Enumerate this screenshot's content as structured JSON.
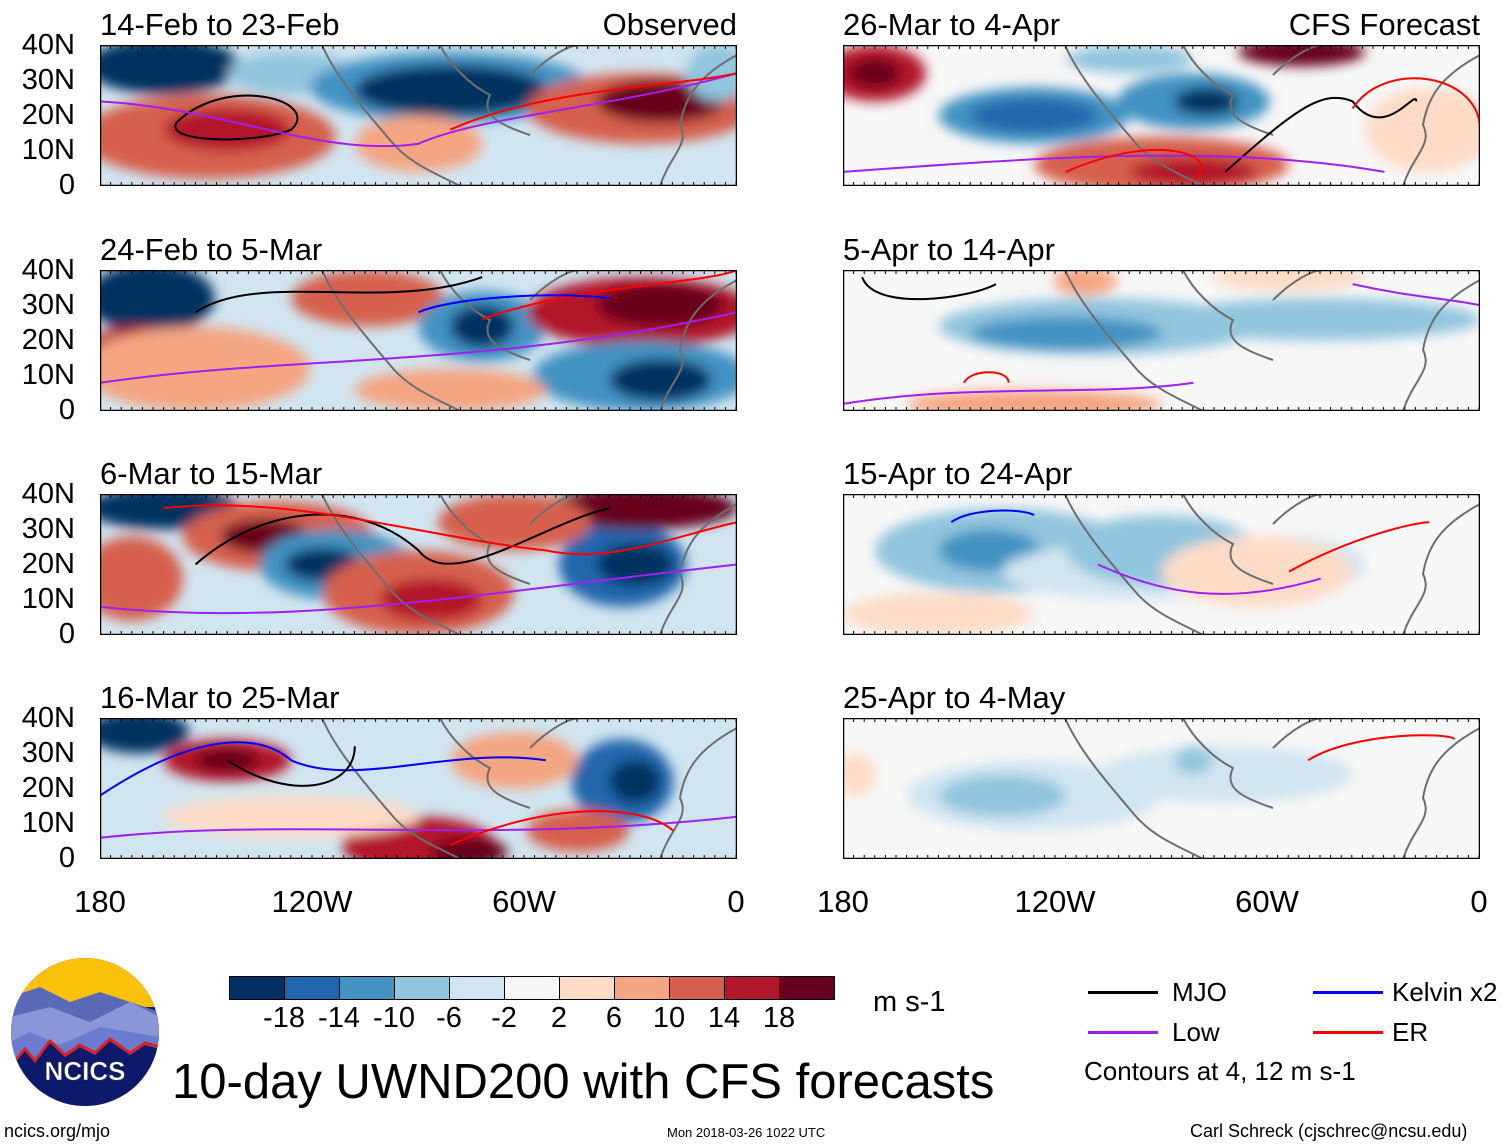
{
  "columns": {
    "left_label": "Observed",
    "right_label": "CFS Forecast"
  },
  "panels": [
    {
      "title": "14-Feb to 23-Feb",
      "kind": "Observed"
    },
    {
      "title": "24-Feb to 5-Mar",
      "kind": "Observed"
    },
    {
      "title": "6-Mar to 15-Mar",
      "kind": "Observed"
    },
    {
      "title": "16-Mar to 25-Mar",
      "kind": "Observed"
    },
    {
      "title": "26-Mar to 4-Apr",
      "kind": "CFS Forecast"
    },
    {
      "title": "5-Apr to 14-Apr",
      "kind": "CFS Forecast"
    },
    {
      "title": "15-Apr to 24-Apr",
      "kind": "CFS Forecast"
    },
    {
      "title": "25-Apr to 4-May",
      "kind": "CFS Forecast"
    }
  ],
  "y_ticks": [
    "40N",
    "30N",
    "20N",
    "10N",
    "0"
  ],
  "x_ticks": [
    "180",
    "120W",
    "60W",
    "0"
  ],
  "colorbar": {
    "colors": [
      "#053061",
      "#2166ac",
      "#4393c3",
      "#92c5de",
      "#d1e5f0",
      "#f7f7f7",
      "#fddbc7",
      "#f4a582",
      "#d6604d",
      "#b2182b",
      "#67001f"
    ],
    "labels": [
      "-18",
      "-14",
      "-10",
      "-6",
      "-2",
      "2",
      "6",
      "10",
      "14",
      "18"
    ],
    "units": "m s-1"
  },
  "legend": {
    "items": [
      {
        "label": "MJO",
        "color": "#000000"
      },
      {
        "label": "Kelvin x2",
        "color": "#0000ff"
      },
      {
        "label": "Low",
        "color": "#a020f0"
      },
      {
        "label": "ER",
        "color": "#ff0000"
      }
    ],
    "note": "Contours at 4, 12 m s-1"
  },
  "title": "10-day UWND200 with CFS forecasts",
  "logo_text": "NCICS",
  "footer": {
    "left": "ncics.org/mjo",
    "center": "Mon 2018-03-26 1022 UTC",
    "right": "Carl Schreck (cjschrec@ncsu.edu)"
  }
}
